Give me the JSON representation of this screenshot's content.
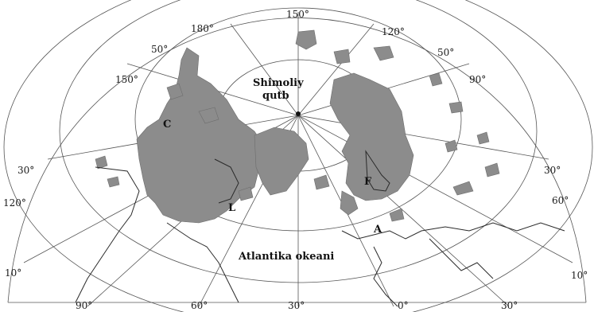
{
  "map": {
    "labels": {
      "north_pole": "Shimoliy\nqutb",
      "ocean": "Atlantika okeani",
      "region_c": "C",
      "region_f": "F",
      "region_l": "L",
      "region_a": "A"
    },
    "meridians_top": [
      "150°",
      "180°",
      "120°",
      "150°",
      "90°"
    ],
    "parallels_left": [
      "50°",
      "30°",
      "120°",
      "10°"
    ],
    "parallels_right": [
      "50°",
      "30°",
      "60°",
      "10°"
    ],
    "meridians_bottom": [
      "90°",
      "60°",
      "30°",
      "0°",
      "30°"
    ],
    "colors": {
      "ice": "#8c8c8c",
      "lines": "#555555",
      "background": "#ffffff"
    }
  }
}
